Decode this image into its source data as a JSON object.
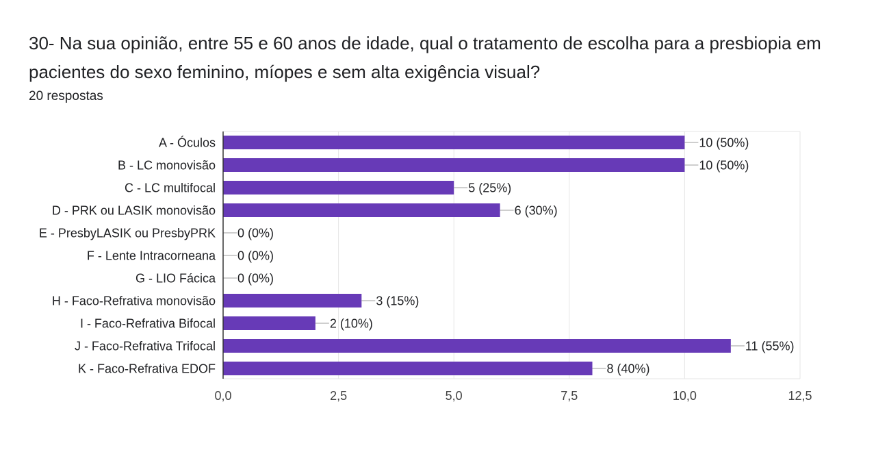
{
  "header": {
    "title": "30- Na sua opinião, entre 55 e 60 anos de idade, qual o tratamento de escolha para a presbiopia em pacientes do sexo feminino, míopes e sem alta exigência visual?",
    "subtitle": "20 respostas"
  },
  "colors": {
    "bar": "#673ab7",
    "grid": "#e6e6e6",
    "axis": "#333333",
    "text": "#202124",
    "tick": "#444444"
  },
  "chart_data": {
    "type": "bar",
    "orientation": "horizontal",
    "title": "30- Na sua opinião, entre 55 e 60 anos de idade, qual o tratamento de escolha para a presbiopia em pacientes do sexo feminino, míopes e sem alta exigência visual?",
    "categories": [
      "A - Óculos",
      "B - LC monovisão",
      "C - LC multifocal",
      "D - PRK ou LASIK monovisão",
      "E - PresbyLASIK ou PresbyPRK",
      "F - Lente Intracorneana",
      "G - LIO Fácica",
      "H - Faco-Refrativa monovisão",
      "I - Faco-Refrativa Bifocal",
      "J - Faco-Refrativa Trifocal",
      "K - Faco-Refrativa EDOF"
    ],
    "values": [
      10,
      10,
      5,
      6,
      0,
      0,
      0,
      3,
      2,
      11,
      8
    ],
    "data_labels": [
      "10 (50%)",
      "10 (50%)",
      "5 (25%)",
      "6 (30%)",
      "0 (0%)",
      "0 (0%)",
      "0 (0%)",
      "3 (15%)",
      "2 (10%)",
      "11 (55%)",
      "8 (40%)"
    ],
    "xticks": [
      "0,0",
      "2,5",
      "5,0",
      "7,5",
      "10,0",
      "12,5"
    ],
    "xlim": [
      0,
      12.5
    ],
    "xlabel": "",
    "ylabel": "",
    "grid": true,
    "legend": "none"
  }
}
